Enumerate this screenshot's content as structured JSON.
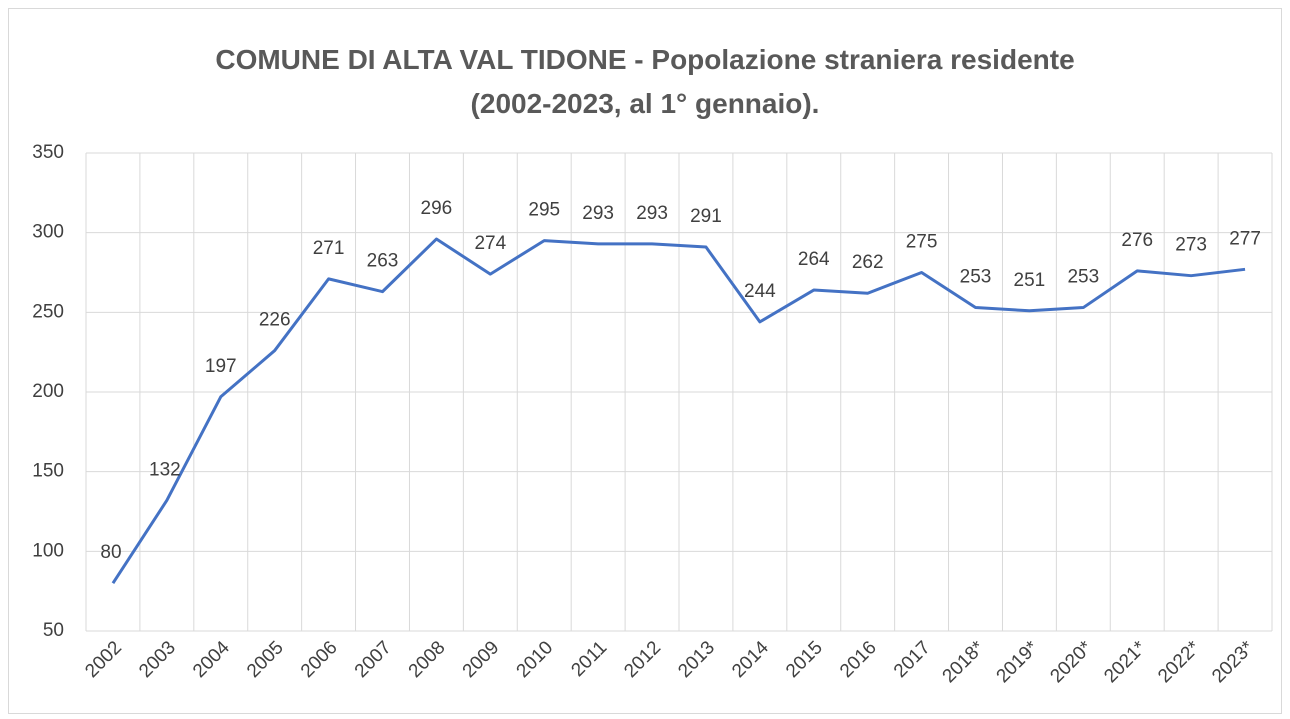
{
  "chart_data": {
    "type": "line",
    "title": "COMUNE DI ALTA VAL TIDONE - Popolazione straniera residente\n(2002-2023, al 1° gennaio).",
    "categories": [
      "2002",
      "2003",
      "2004",
      "2005",
      "2006",
      "2007",
      "2008",
      "2009",
      "2010",
      "2011",
      "2012",
      "2013",
      "2014",
      "2015",
      "2016",
      "2017",
      "2018*",
      "2019*",
      "2020*",
      "2021*",
      "2022*",
      "2023*"
    ],
    "series": [
      {
        "name": "Popolazione straniera residente",
        "color": "#4472c4",
        "values": [
          80,
          132,
          197,
          226,
          271,
          263,
          296,
          274,
          295,
          293,
          293,
          291,
          244,
          264,
          262,
          275,
          253,
          251,
          253,
          276,
          273,
          277
        ]
      }
    ],
    "ylim": [
      50,
      350
    ],
    "yticks": [
      50,
      100,
      150,
      200,
      250,
      300,
      350
    ],
    "grid": true
  }
}
